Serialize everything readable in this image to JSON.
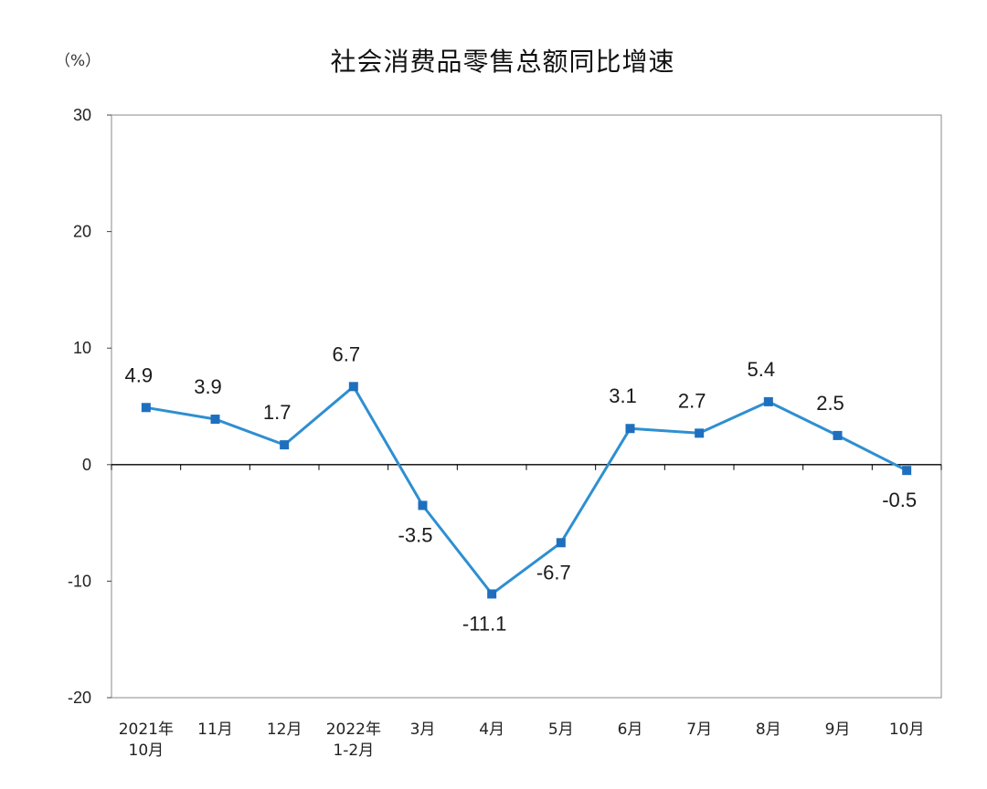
{
  "chart_data": {
    "type": "line",
    "title": "社会消费品零售总额同比增速",
    "unit_label": "（%）",
    "xlabel": "",
    "ylabel": "%",
    "ylim": [
      -20,
      30
    ],
    "yticks": [
      30,
      20,
      10,
      0,
      -10,
      -20
    ],
    "categories": [
      [
        "2021年",
        "10月"
      ],
      [
        "11月"
      ],
      [
        "12月"
      ],
      [
        "2022年",
        "1-2月"
      ],
      [
        "3月"
      ],
      [
        "4月"
      ],
      [
        "5月"
      ],
      [
        "6月"
      ],
      [
        "7月"
      ],
      [
        "8月"
      ],
      [
        "9月"
      ],
      [
        "10月"
      ]
    ],
    "series": [
      {
        "name": "社会消费品零售总额同比增速",
        "values": [
          4.9,
          3.9,
          1.7,
          6.7,
          -3.5,
          -11.1,
          -6.7,
          3.1,
          2.7,
          5.4,
          2.5,
          -0.5
        ],
        "labels": [
          "4.9",
          "3.9",
          "1.7",
          "6.7",
          "-3.5",
          "-11.1",
          "-6.7",
          "3.1",
          "2.7",
          "5.4",
          "2.5",
          "-0.5"
        ],
        "color": "#2e8fd1",
        "marker_color": "#1f6fbf"
      }
    ],
    "grid": false,
    "legend": "none"
  }
}
